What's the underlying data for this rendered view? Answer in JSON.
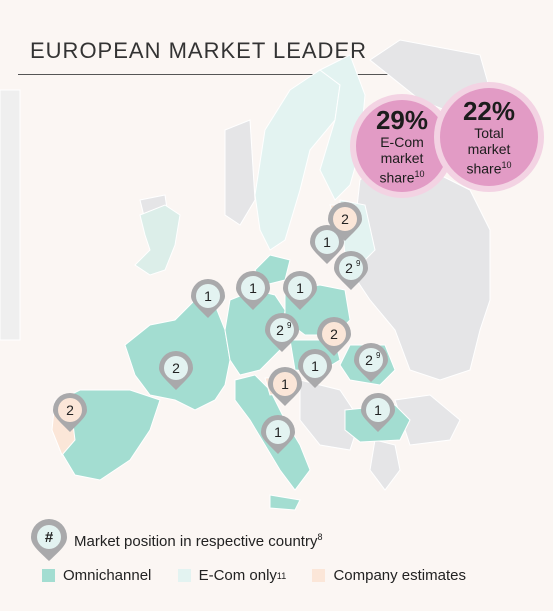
{
  "title": "EUROPEAN MARKET LEADER",
  "colors": {
    "omnichannel": "#a3ddd1",
    "ecom_only": "#e3f3f1",
    "company_estimates": "#fbe6d8",
    "other_land": "#e5e5e7",
    "pin_border": "#a9a9ab",
    "bubble": "#e29bc5"
  },
  "bubbles": {
    "ecom": {
      "value": "29%",
      "line1": "E-Com",
      "line2": "market",
      "line3": "share",
      "footnote": "10"
    },
    "total": {
      "value": "22%",
      "line1": "Total",
      "line2": "market",
      "line3": "share",
      "footnote": "10"
    }
  },
  "markers": [
    {
      "country": "Finland",
      "value": "2",
      "footnote": "",
      "style": "company_estimates"
    },
    {
      "country": "Sweden",
      "value": "1",
      "footnote": "",
      "style": "ecom_only"
    },
    {
      "country": "Baltics",
      "value": "2",
      "footnote": "9",
      "style": "ecom_only"
    },
    {
      "country": "Netherlands",
      "value": "1",
      "footnote": "",
      "style": "ecom_only"
    },
    {
      "country": "Denmark",
      "value": "1",
      "footnote": "",
      "style": "ecom_only"
    },
    {
      "country": "Poland",
      "value": "1",
      "footnote": "",
      "style": "ecom_only"
    },
    {
      "country": "Germany",
      "value": "2",
      "footnote": "9",
      "style": "ecom_only"
    },
    {
      "country": "Slovakia",
      "value": "2",
      "footnote": "",
      "style": "company_estimates"
    },
    {
      "country": "France",
      "value": "2",
      "footnote": "",
      "style": "ecom_only"
    },
    {
      "country": "Austria",
      "value": "1",
      "footnote": "",
      "style": "ecom_only"
    },
    {
      "country": "Switzerland",
      "value": "1",
      "footnote": "",
      "style": "company_estimates"
    },
    {
      "country": "Romania",
      "value": "2",
      "footnote": "9",
      "style": "ecom_only"
    },
    {
      "country": "Portugal",
      "value": "2",
      "footnote": "",
      "style": "company_estimates"
    },
    {
      "country": "Bulgaria",
      "value": "1",
      "footnote": "",
      "style": "ecom_only"
    },
    {
      "country": "Italy",
      "value": "1",
      "footnote": "",
      "style": "ecom_only"
    }
  ],
  "legend": {
    "position_symbol": "#",
    "position_text": "Market position in respective country",
    "position_footnote": "8",
    "omnichannel": "Omnichannel",
    "ecom_only": "E-Com only",
    "ecom_only_footnote": "11",
    "company_estimates": "Company estimates"
  }
}
